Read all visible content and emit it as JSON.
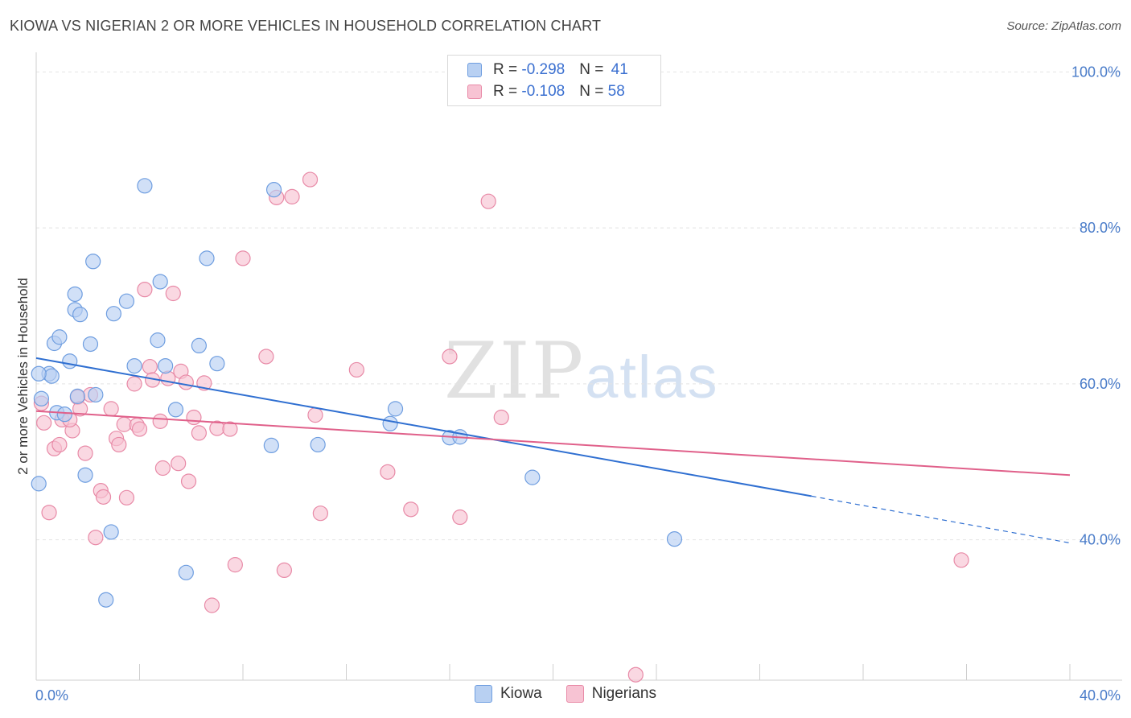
{
  "title": "KIOWA VS NIGERIAN 2 OR MORE VEHICLES IN HOUSEHOLD CORRELATION CHART",
  "source": "Source: ZipAtlas.com",
  "watermark": {
    "zip": "ZIP",
    "atlas": "atlas"
  },
  "legend": {
    "rows": [
      {
        "r_label": "R = ",
        "r_value": "-0.298",
        "n_label": "N = ",
        "n_value": "41"
      },
      {
        "r_label": "R = ",
        "r_value": "-0.108",
        "n_label": "N = ",
        "n_value": "58"
      }
    ]
  },
  "chart_data": {
    "type": "scatter",
    "title": "KIOWA VS NIGERIAN 2 OR MORE VEHICLES IN HOUSEHOLD CORRELATION CHART",
    "xlabel": "",
    "ylabel": "2 or more Vehicles in Household",
    "xlim": [
      0,
      40
    ],
    "ylim": [
      22,
      102
    ],
    "x_tick_labels": [
      "0.0%",
      "40.0%"
    ],
    "y_ticks": [
      100,
      80,
      60,
      40
    ],
    "y_tick_labels": [
      "100.0%",
      "80.0%",
      "60.0%",
      "40.0%"
    ],
    "grid": true,
    "legend_position": "top-center",
    "series": [
      {
        "name": "Kiowa",
        "color": "#6f9ee0",
        "fill": "#b8d0f2",
        "trend": {
          "x": [
            0,
            30
          ],
          "y": [
            63.3,
            45.6
          ],
          "dash_to": [
            40,
            39.6
          ]
        },
        "points": [
          [
            0.1,
            47.2
          ],
          [
            0.2,
            58.1
          ],
          [
            0.5,
            61.3
          ],
          [
            0.6,
            61.0
          ],
          [
            0.7,
            65.2
          ],
          [
            0.8,
            56.3
          ],
          [
            0.9,
            66.0
          ],
          [
            1.1,
            56.1
          ],
          [
            1.3,
            62.9
          ],
          [
            1.5,
            69.5
          ],
          [
            1.5,
            71.5
          ],
          [
            1.6,
            58.4
          ],
          [
            1.7,
            68.9
          ],
          [
            1.9,
            48.3
          ],
          [
            2.1,
            65.1
          ],
          [
            2.2,
            75.7
          ],
          [
            2.3,
            58.6
          ],
          [
            2.9,
            41.0
          ],
          [
            2.7,
            32.3
          ],
          [
            3.0,
            69.0
          ],
          [
            3.5,
            70.6
          ],
          [
            3.8,
            62.3
          ],
          [
            4.2,
            85.4
          ],
          [
            4.7,
            65.6
          ],
          [
            4.8,
            73.1
          ],
          [
            5.0,
            62.3
          ],
          [
            5.4,
            56.7
          ],
          [
            5.8,
            35.8
          ],
          [
            6.3,
            64.9
          ],
          [
            6.6,
            76.1
          ],
          [
            7.0,
            62.6
          ],
          [
            9.1,
            52.1
          ],
          [
            9.2,
            84.9
          ],
          [
            10.9,
            52.2
          ],
          [
            13.7,
            54.9
          ],
          [
            13.9,
            56.8
          ],
          [
            16.0,
            53.1
          ],
          [
            16.4,
            53.2
          ],
          [
            19.2,
            48.0
          ],
          [
            24.7,
            40.1
          ],
          [
            0.1,
            61.3
          ]
        ]
      },
      {
        "name": "Nigerians",
        "color": "#e88aa7",
        "fill": "#f7c3d3",
        "trend": {
          "x": [
            0,
            40
          ],
          "y": [
            56.5,
            48.3
          ]
        },
        "points": [
          [
            0.2,
            57.5
          ],
          [
            0.3,
            55.0
          ],
          [
            0.5,
            43.5
          ],
          [
            0.7,
            51.7
          ],
          [
            0.9,
            52.2
          ],
          [
            1.0,
            55.4
          ],
          [
            1.4,
            54.0
          ],
          [
            1.6,
            58.3
          ],
          [
            1.7,
            56.8
          ],
          [
            1.9,
            51.1
          ],
          [
            2.1,
            58.6
          ],
          [
            2.3,
            40.3
          ],
          [
            2.5,
            46.3
          ],
          [
            2.6,
            45.5
          ],
          [
            2.9,
            56.8
          ],
          [
            3.1,
            53.0
          ],
          [
            3.2,
            52.2
          ],
          [
            3.4,
            54.8
          ],
          [
            3.5,
            45.4
          ],
          [
            3.8,
            60.0
          ],
          [
            3.9,
            54.7
          ],
          [
            4.0,
            54.2
          ],
          [
            4.2,
            72.1
          ],
          [
            4.4,
            62.2
          ],
          [
            4.5,
            60.5
          ],
          [
            4.8,
            55.2
          ],
          [
            4.9,
            49.2
          ],
          [
            5.1,
            60.7
          ],
          [
            5.3,
            71.6
          ],
          [
            5.5,
            49.8
          ],
          [
            5.6,
            61.6
          ],
          [
            5.8,
            60.2
          ],
          [
            5.9,
            47.5
          ],
          [
            6.1,
            55.7
          ],
          [
            6.3,
            53.7
          ],
          [
            6.5,
            60.1
          ],
          [
            6.8,
            31.6
          ],
          [
            7.0,
            54.3
          ],
          [
            7.5,
            54.2
          ],
          [
            7.7,
            36.8
          ],
          [
            8.0,
            76.1
          ],
          [
            8.9,
            63.5
          ],
          [
            9.3,
            83.9
          ],
          [
            9.6,
            36.1
          ],
          [
            9.9,
            84.0
          ],
          [
            10.6,
            86.2
          ],
          [
            10.8,
            56.0
          ],
          [
            11.0,
            43.4
          ],
          [
            12.4,
            61.8
          ],
          [
            13.6,
            48.7
          ],
          [
            14.5,
            43.9
          ],
          [
            16.0,
            63.5
          ],
          [
            16.4,
            42.9
          ],
          [
            17.5,
            83.4
          ],
          [
            18.0,
            55.7
          ],
          [
            23.2,
            22.7
          ],
          [
            35.8,
            37.4
          ],
          [
            1.3,
            55.4
          ]
        ]
      }
    ]
  }
}
